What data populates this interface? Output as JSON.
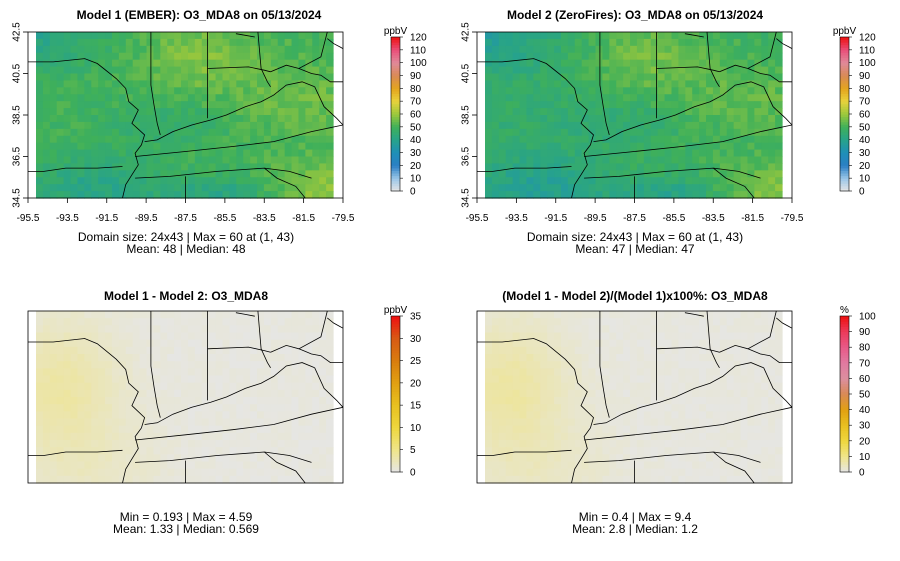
{
  "chart_data": [
    {
      "type": "heatmap",
      "title": "Model 1 (EMBER): O3_MDA8 on 05/13/2024",
      "field": "o3_model1",
      "x_ticks": [
        "-95.5",
        "-93.5",
        "-91.5",
        "-89.5",
        "-87.5",
        "-85.5",
        "-83.5",
        "-81.5",
        "-79.5"
      ],
      "y_ticks": [
        "34.5",
        "36.5",
        "38.5",
        "40.5",
        "42.5"
      ],
      "xlim": [
        -95.5,
        -79.5
      ],
      "ylim": [
        34.5,
        42.5
      ],
      "colorbar": {
        "unit": "ppbV",
        "ticks": [
          "0",
          "10",
          "20",
          "30",
          "40",
          "50",
          "60",
          "70",
          "80",
          "90",
          "100",
          "110",
          "120"
        ],
        "range": [
          0,
          120
        ],
        "colors": [
          "#e6e6e6",
          "#9ac6e8",
          "#2b7fc4",
          "#1f8fb8",
          "#27a38a",
          "#3fb05a",
          "#9cc83c",
          "#e8d23c",
          "#e3a51e",
          "#d98a55",
          "#e08a9a",
          "#ea4f7a",
          "#ee1111"
        ]
      },
      "stats_line1": "Domain size: 24x43 | Max = 60 at (1, 43)",
      "stats_line2": "Mean: 48 |  Median: 48",
      "domain_size": "24x43",
      "max": 60,
      "mean": 48,
      "median": 48
    },
    {
      "type": "heatmap",
      "title": "Model 2 (ZeroFires): O3_MDA8 on 05/13/2024",
      "field": "o3_model2",
      "x_ticks": [
        "-95.5",
        "-93.5",
        "-91.5",
        "-89.5",
        "-87.5",
        "-85.5",
        "-83.5",
        "-81.5",
        "-79.5"
      ],
      "y_ticks": [
        "34.5",
        "36.5",
        "38.5",
        "40.5",
        "42.5"
      ],
      "xlim": [
        -95.5,
        -79.5
      ],
      "ylim": [
        34.5,
        42.5
      ],
      "colorbar": {
        "unit": "ppbV",
        "ticks": [
          "0",
          "10",
          "20",
          "30",
          "40",
          "50",
          "60",
          "70",
          "80",
          "90",
          "100",
          "110",
          "120"
        ],
        "range": [
          0,
          120
        ],
        "colors": [
          "#e6e6e6",
          "#9ac6e8",
          "#2b7fc4",
          "#1f8fb8",
          "#27a38a",
          "#3fb05a",
          "#9cc83c",
          "#e8d23c",
          "#e3a51e",
          "#d98a55",
          "#e08a9a",
          "#ea4f7a",
          "#ee1111"
        ]
      },
      "stats_line1": "Domain size: 24x43 | Max = 60 at (1, 43)",
      "stats_line2": "Mean: 47 |  Median: 47",
      "domain_size": "24x43",
      "max": 60,
      "mean": 47,
      "median": 47
    },
    {
      "type": "heatmap",
      "title": "Model 1 - Model 2: O3_MDA8",
      "field": "o3_diff",
      "x_ticks": [],
      "y_ticks": [],
      "xlim": [
        -95.5,
        -79.5
      ],
      "ylim": [
        34.5,
        42.5
      ],
      "colorbar": {
        "unit": "ppbV",
        "ticks": [
          "0",
          "5",
          "10",
          "15",
          "20",
          "25",
          "30",
          "35"
        ],
        "range": [
          0,
          35
        ],
        "colors": [
          "#e6e6e6",
          "#efe58a",
          "#eed73e",
          "#e8c020",
          "#e1a012",
          "#d97d0e",
          "#d85a14",
          "#ee1111"
        ]
      },
      "stats_line1": "Min = 0.193 | Max = 4.59",
      "stats_line2": "Mean: 1.33 |  Median: 0.569",
      "min": 0.193,
      "max": 4.59,
      "mean": 1.33,
      "median": 0.569
    },
    {
      "type": "heatmap",
      "title": "(Model 1 - Model 2)/(Model 1)x100%: O3_MDA8",
      "field": "o3_pct",
      "x_ticks": [],
      "y_ticks": [],
      "xlim": [
        -95.5,
        -79.5
      ],
      "ylim": [
        34.5,
        42.5
      ],
      "colorbar": {
        "unit": "%",
        "ticks": [
          "0",
          "10",
          "20",
          "30",
          "40",
          "50",
          "60",
          "70",
          "80",
          "90",
          "100"
        ],
        "range": [
          0,
          100
        ],
        "colors": [
          "#e6e6e6",
          "#efe58a",
          "#eed73e",
          "#e8c020",
          "#e1a012",
          "#d98a55",
          "#dc8f9f",
          "#e07aa0",
          "#e85a88",
          "#ec3a5a",
          "#ee1111"
        ]
      },
      "stats_line1": "Min = 0.4 | Max = 9.4",
      "stats_line2": "Mean: 2.8 |  Median: 1.2",
      "min": 0.4,
      "max": 9.4,
      "mean": 2.8,
      "median": 1.2
    }
  ]
}
